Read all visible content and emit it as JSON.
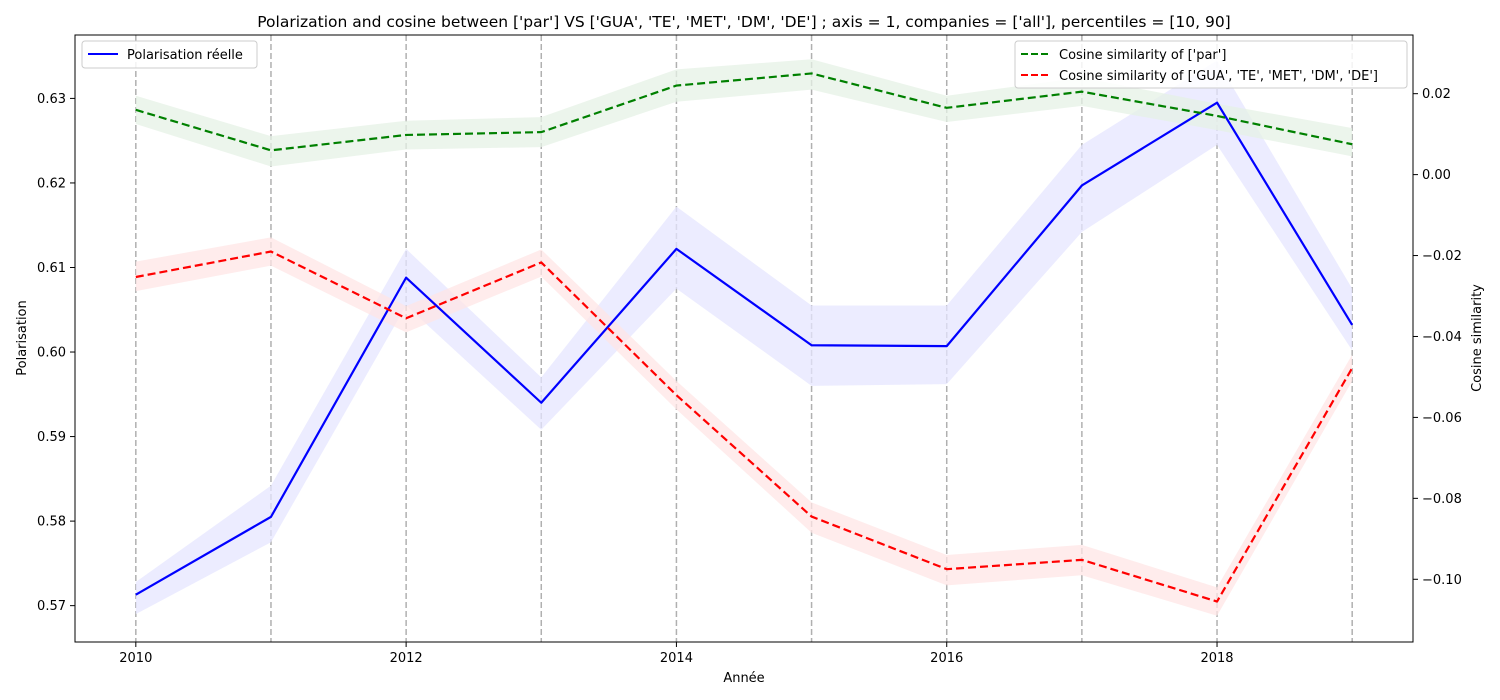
{
  "chart_data": {
    "type": "line",
    "title": "Polarization and cosine between ['par'] VS ['GUA', 'TE', 'MET', 'DM', 'DE'] ; axis = 1, companies = ['all'], percentiles = [10, 90]",
    "xlabel": "Année",
    "ylabel_left": "Polarisation",
    "ylabel_right": "Cosine similarity",
    "x": [
      2010,
      2011,
      2012,
      2013,
      2014,
      2015,
      2016,
      2017,
      2018,
      2019
    ],
    "xlim": [
      2009.55,
      2019.45
    ],
    "xticks": [
      2010,
      2012,
      2014,
      2016,
      2018
    ],
    "ylim_left": [
      0.5657,
      0.6375
    ],
    "yticks_left": [
      0.57,
      0.58,
      0.59,
      0.6,
      0.61,
      0.62,
      0.63
    ],
    "yticks_left_labels": [
      "0.57",
      "0.58",
      "0.59",
      "0.60",
      "0.61",
      "0.62",
      "0.63"
    ],
    "ylim_right": [
      -0.1155,
      0.0345
    ],
    "yticks_right": [
      -0.1,
      -0.08,
      -0.06,
      -0.04,
      -0.02,
      0.0,
      0.02
    ],
    "yticks_right_labels": [
      "−0.10",
      "−0.08",
      "−0.06",
      "−0.04",
      "−0.02",
      "0.00",
      "0.02"
    ],
    "vertical_gridlines_at_x": true,
    "series": [
      {
        "name": "Polarisation réelle",
        "axis": "left",
        "color": "#0000ff",
        "style": "solid",
        "values": [
          0.5713,
          0.5805,
          0.6088,
          0.594,
          0.6122,
          0.6008,
          0.6007,
          0.6197,
          0.6295,
          0.6032
        ],
        "band_low": [
          0.569,
          0.5775,
          0.6055,
          0.5908,
          0.6075,
          0.596,
          0.5962,
          0.6142,
          0.6245,
          0.6002
        ],
        "band_high": [
          0.5728,
          0.5842,
          0.6122,
          0.597,
          0.6172,
          0.6055,
          0.6055,
          0.6245,
          0.6345,
          0.6075
        ],
        "band_color": "#e6e6ff"
      },
      {
        "name": "Cosine similarity of ['par']",
        "axis": "right",
        "color": "#008000",
        "style": "dashed",
        "values": [
          0.016,
          0.006,
          0.0098,
          0.0105,
          0.022,
          0.025,
          0.0165,
          0.0205,
          0.0145,
          0.0075
        ],
        "band_low": [
          0.0125,
          0.002,
          0.0062,
          0.0068,
          0.018,
          0.021,
          0.013,
          0.017,
          0.011,
          0.0045
        ],
        "band_high": [
          0.0195,
          0.0095,
          0.0133,
          0.0142,
          0.026,
          0.0285,
          0.0195,
          0.024,
          0.0175,
          0.0115
        ],
        "band_color": "#e6f2e6"
      },
      {
        "name": "Cosine similarity of ['GUA', 'TE', 'MET', 'DM', 'DE']",
        "axis": "right",
        "color": "#ff0000",
        "style": "dashed",
        "values": [
          -0.0253,
          -0.019,
          -0.0355,
          -0.0217,
          -0.0545,
          -0.0845,
          -0.0975,
          -0.0952,
          -0.1055,
          -0.0478
        ],
        "band_low": [
          -0.0288,
          -0.0225,
          -0.039,
          -0.0252,
          -0.058,
          -0.0885,
          -0.1015,
          -0.099,
          -0.109,
          -0.051
        ],
        "band_high": [
          -0.0215,
          -0.0155,
          -0.0325,
          -0.0185,
          -0.051,
          -0.081,
          -0.094,
          -0.0915,
          -0.102,
          -0.0445
        ],
        "band_color": "#ffe6e6"
      }
    ],
    "legends": [
      {
        "placement": "top-left",
        "entries": [
          "Polarisation réelle"
        ]
      },
      {
        "placement": "top-right",
        "entries": [
          "Cosine similarity of ['par']",
          "Cosine similarity of ['GUA', 'TE', 'MET', 'DM', 'DE']"
        ]
      }
    ]
  }
}
